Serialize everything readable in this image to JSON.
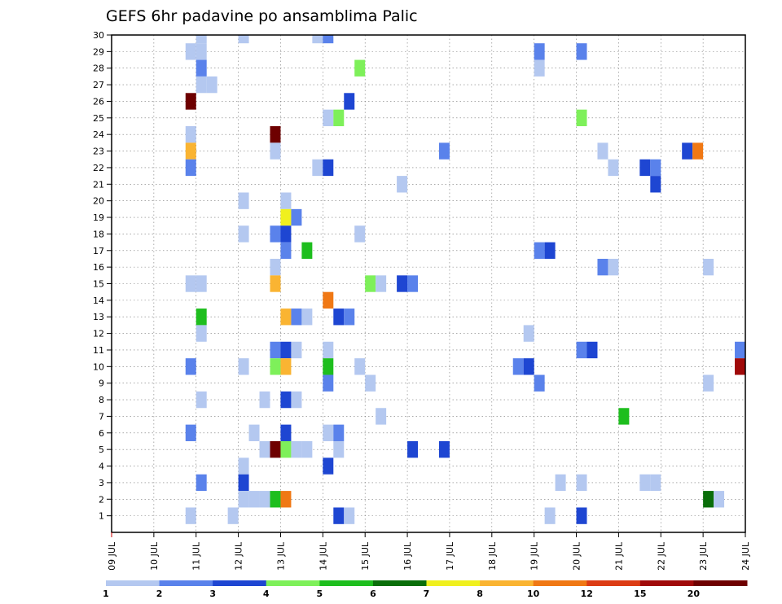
{
  "chart_data": {
    "type": "heatmap",
    "title": "GEFS 6hr padavine po ansamblima Palic",
    "xlabel": "",
    "ylabel": "",
    "x_ticks": [
      "09 JUL",
      "10 JUL",
      "11 JUL",
      "12 JUL",
      "13 JUL",
      "14 JUL",
      "15 JUL",
      "16 JUL",
      "17 JUL",
      "18 JUL",
      "19 JUL",
      "20 JUL",
      "21 JUL",
      "22 JUL",
      "23 JUL",
      "24 JUL"
    ],
    "y_ticks": [
      "1",
      "2",
      "3",
      "4",
      "5",
      "6",
      "7",
      "8",
      "9",
      "10",
      "11",
      "12",
      "13",
      "14",
      "15",
      "16",
      "17",
      "18",
      "19",
      "20",
      "21",
      "22",
      "23",
      "24",
      "25",
      "26",
      "27",
      "28",
      "29",
      "30"
    ],
    "xlim_days": [
      0,
      15
    ],
    "ylim": [
      0,
      30
    ],
    "grid": true,
    "legend_position": "bottom",
    "legend": {
      "labels": [
        "1",
        "2",
        "3",
        "4",
        "5",
        "6",
        "7",
        "8",
        "10",
        "12",
        "15",
        "20"
      ],
      "colors": [
        "#b4c8f0",
        "#5a82eb",
        "#1e46d2",
        "#7ef05a",
        "#1ebe1e",
        "#0a6e0a",
        "#f0f01e",
        "#fab432",
        "#f07814",
        "#dc3c14",
        "#a00a0a",
        "#6e0000"
      ]
    },
    "cell_width_days": 0.25,
    "points": [
      {
        "member": 30,
        "t": 2.0,
        "v": 1
      },
      {
        "member": 30,
        "t": 3.0,
        "v": 1
      },
      {
        "member": 30,
        "t": 4.75,
        "v": 1
      },
      {
        "member": 30,
        "t": 5.0,
        "v": 2
      },
      {
        "member": 29,
        "t": 1.75,
        "v": 1
      },
      {
        "member": 29,
        "t": 2.0,
        "v": 1
      },
      {
        "member": 29,
        "t": 10.0,
        "v": 2
      },
      {
        "member": 29,
        "t": 11.0,
        "v": 2
      },
      {
        "member": 28,
        "t": 2.0,
        "v": 2
      },
      {
        "member": 28,
        "t": 5.75,
        "v": 4
      },
      {
        "member": 28,
        "t": 10.0,
        "v": 1
      },
      {
        "member": 27,
        "t": 2.0,
        "v": 1
      },
      {
        "member": 27,
        "t": 2.25,
        "v": 1
      },
      {
        "member": 26,
        "t": 1.75,
        "v": 20
      },
      {
        "member": 26,
        "t": 5.5,
        "v": 3
      },
      {
        "member": 25,
        "t": 5.0,
        "v": 1
      },
      {
        "member": 25,
        "t": 5.25,
        "v": 4
      },
      {
        "member": 25,
        "t": 11.0,
        "v": 4
      },
      {
        "member": 24,
        "t": 1.75,
        "v": 1
      },
      {
        "member": 24,
        "t": 3.75,
        "v": 20
      },
      {
        "member": 23,
        "t": 1.75,
        "v": 8
      },
      {
        "member": 23,
        "t": 3.75,
        "v": 1
      },
      {
        "member": 23,
        "t": 7.75,
        "v": 2
      },
      {
        "member": 23,
        "t": 11.5,
        "v": 1
      },
      {
        "member": 23,
        "t": 13.5,
        "v": 3
      },
      {
        "member": 23,
        "t": 13.75,
        "v": 10
      },
      {
        "member": 22,
        "t": 1.75,
        "v": 2
      },
      {
        "member": 22,
        "t": 4.75,
        "v": 1
      },
      {
        "member": 22,
        "t": 5.0,
        "v": 3
      },
      {
        "member": 22,
        "t": 11.75,
        "v": 1
      },
      {
        "member": 22,
        "t": 12.5,
        "v": 3
      },
      {
        "member": 22,
        "t": 12.75,
        "v": 2
      },
      {
        "member": 21,
        "t": 6.75,
        "v": 1
      },
      {
        "member": 21,
        "t": 12.75,
        "v": 3
      },
      {
        "member": 20,
        "t": 3.0,
        "v": 1
      },
      {
        "member": 20,
        "t": 4.0,
        "v": 1
      },
      {
        "member": 19,
        "t": 4.0,
        "v": 7
      },
      {
        "member": 19,
        "t": 4.25,
        "v": 2
      },
      {
        "member": 18,
        "t": 3.0,
        "v": 1
      },
      {
        "member": 18,
        "t": 3.75,
        "v": 2
      },
      {
        "member": 18,
        "t": 4.0,
        "v": 3
      },
      {
        "member": 18,
        "t": 5.75,
        "v": 1
      },
      {
        "member": 17,
        "t": 4.0,
        "v": 2
      },
      {
        "member": 17,
        "t": 4.5,
        "v": 5
      },
      {
        "member": 17,
        "t": 10.0,
        "v": 2
      },
      {
        "member": 17,
        "t": 10.25,
        "v": 3
      },
      {
        "member": 16,
        "t": 3.75,
        "v": 1
      },
      {
        "member": 16,
        "t": 11.5,
        "v": 2
      },
      {
        "member": 16,
        "t": 11.75,
        "v": 1
      },
      {
        "member": 16,
        "t": 14.0,
        "v": 1
      },
      {
        "member": 15,
        "t": 1.75,
        "v": 1
      },
      {
        "member": 15,
        "t": 2.0,
        "v": 1
      },
      {
        "member": 15,
        "t": 3.75,
        "v": 8
      },
      {
        "member": 15,
        "t": 6.0,
        "v": 4
      },
      {
        "member": 15,
        "t": 6.25,
        "v": 1
      },
      {
        "member": 15,
        "t": 6.75,
        "v": 3
      },
      {
        "member": 15,
        "t": 7.0,
        "v": 2
      },
      {
        "member": 14,
        "t": 5.0,
        "v": 10
      },
      {
        "member": 13,
        "t": 2.0,
        "v": 5
      },
      {
        "member": 13,
        "t": 4.0,
        "v": 8
      },
      {
        "member": 13,
        "t": 4.25,
        "v": 2
      },
      {
        "member": 13,
        "t": 4.5,
        "v": 1
      },
      {
        "member": 13,
        "t": 5.25,
        "v": 3
      },
      {
        "member": 13,
        "t": 5.5,
        "v": 2
      },
      {
        "member": 12,
        "t": 2.0,
        "v": 1
      },
      {
        "member": 12,
        "t": 9.75,
        "v": 1
      },
      {
        "member": 11,
        "t": 3.75,
        "v": 2
      },
      {
        "member": 11,
        "t": 4.0,
        "v": 3
      },
      {
        "member": 11,
        "t": 4.25,
        "v": 1
      },
      {
        "member": 11,
        "t": 5.0,
        "v": 1
      },
      {
        "member": 11,
        "t": 11.0,
        "v": 2
      },
      {
        "member": 11,
        "t": 11.25,
        "v": 3
      },
      {
        "member": 11,
        "t": 14.75,
        "v": 2
      },
      {
        "member": 10,
        "t": 1.75,
        "v": 2
      },
      {
        "member": 10,
        "t": 3.0,
        "v": 1
      },
      {
        "member": 10,
        "t": 3.75,
        "v": 4
      },
      {
        "member": 10,
        "t": 4.0,
        "v": 8
      },
      {
        "member": 10,
        "t": 5.0,
        "v": 5
      },
      {
        "member": 10,
        "t": 5.75,
        "v": 1
      },
      {
        "member": 10,
        "t": 9.5,
        "v": 2
      },
      {
        "member": 10,
        "t": 9.75,
        "v": 3
      },
      {
        "member": 10,
        "t": 14.75,
        "v": 15
      },
      {
        "member": 9,
        "t": 5.0,
        "v": 2
      },
      {
        "member": 9,
        "t": 6.0,
        "v": 1
      },
      {
        "member": 9,
        "t": 10.0,
        "v": 2
      },
      {
        "member": 9,
        "t": 14.0,
        "v": 1
      },
      {
        "member": 8,
        "t": 2.0,
        "v": 1
      },
      {
        "member": 8,
        "t": 3.5,
        "v": 1
      },
      {
        "member": 8,
        "t": 4.0,
        "v": 3
      },
      {
        "member": 8,
        "t": 4.25,
        "v": 1
      },
      {
        "member": 7,
        "t": 6.25,
        "v": 1
      },
      {
        "member": 7,
        "t": 12.0,
        "v": 5
      },
      {
        "member": 6,
        "t": 1.75,
        "v": 2
      },
      {
        "member": 6,
        "t": 3.25,
        "v": 1
      },
      {
        "member": 6,
        "t": 4.0,
        "v": 3
      },
      {
        "member": 6,
        "t": 5.0,
        "v": 1
      },
      {
        "member": 6,
        "t": 5.25,
        "v": 2
      },
      {
        "member": 5,
        "t": 3.5,
        "v": 1
      },
      {
        "member": 5,
        "t": 3.75,
        "v": 20
      },
      {
        "member": 5,
        "t": 4.0,
        "v": 4
      },
      {
        "member": 5,
        "t": 4.25,
        "v": 1
      },
      {
        "member": 5,
        "t": 4.5,
        "v": 1
      },
      {
        "member": 5,
        "t": 5.25,
        "v": 1
      },
      {
        "member": 5,
        "t": 7.0,
        "v": 3
      },
      {
        "member": 5,
        "t": 7.75,
        "v": 3
      },
      {
        "member": 4,
        "t": 3.0,
        "v": 1
      },
      {
        "member": 4,
        "t": 5.0,
        "v": 3
      },
      {
        "member": 3,
        "t": 2.0,
        "v": 2
      },
      {
        "member": 3,
        "t": 3.0,
        "v": 3
      },
      {
        "member": 3,
        "t": 10.5,
        "v": 1
      },
      {
        "member": 3,
        "t": 11.0,
        "v": 1
      },
      {
        "member": 3,
        "t": 12.5,
        "v": 1
      },
      {
        "member": 3,
        "t": 12.75,
        "v": 1
      },
      {
        "member": 2,
        "t": 3.0,
        "v": 1
      },
      {
        "member": 2,
        "t": 3.25,
        "v": 1
      },
      {
        "member": 2,
        "t": 3.5,
        "v": 1
      },
      {
        "member": 2,
        "t": 3.75,
        "v": 5
      },
      {
        "member": 2,
        "t": 4.0,
        "v": 10
      },
      {
        "member": 2,
        "t": 14.0,
        "v": 6
      },
      {
        "member": 2,
        "t": 14.25,
        "v": 1
      },
      {
        "member": 1,
        "t": 1.75,
        "v": 1
      },
      {
        "member": 1,
        "t": 2.75,
        "v": 1
      },
      {
        "member": 1,
        "t": 5.25,
        "v": 3
      },
      {
        "member": 1,
        "t": 5.5,
        "v": 1
      },
      {
        "member": 1,
        "t": 10.25,
        "v": 1
      },
      {
        "member": 1,
        "t": 11.0,
        "v": 3
      }
    ]
  }
}
